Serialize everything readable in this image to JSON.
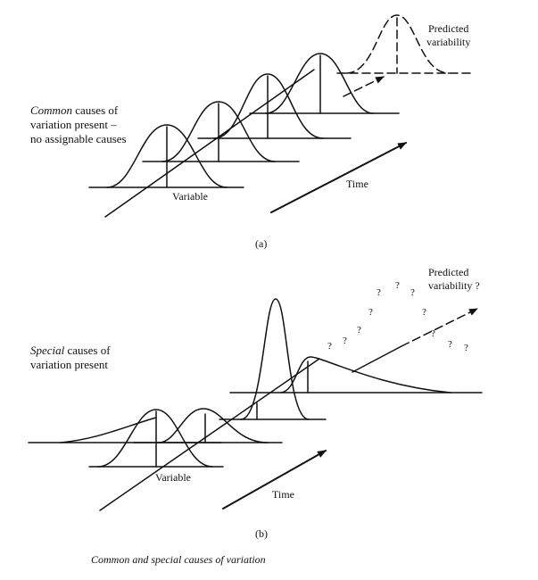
{
  "panel_a": {
    "common_word": "Common",
    "common_rest_1": " causes of",
    "common_line_2": "variation present –",
    "common_line_3": "no assignable causes",
    "predicted_line_1": "Predicted",
    "predicted_line_2": "variability",
    "variable": "Variable",
    "time": "Time",
    "caption": "(a)"
  },
  "panel_b": {
    "special_word": "Special",
    "special_rest_1": " causes of",
    "special_line_2": "variation present",
    "predicted_line_1": "Predicted",
    "predicted_line_2": "variability ?",
    "question_mark": "?",
    "variable": "Variable",
    "time": "Time",
    "caption": "(b)"
  },
  "figure_caption": "Common and special causes of variation"
}
